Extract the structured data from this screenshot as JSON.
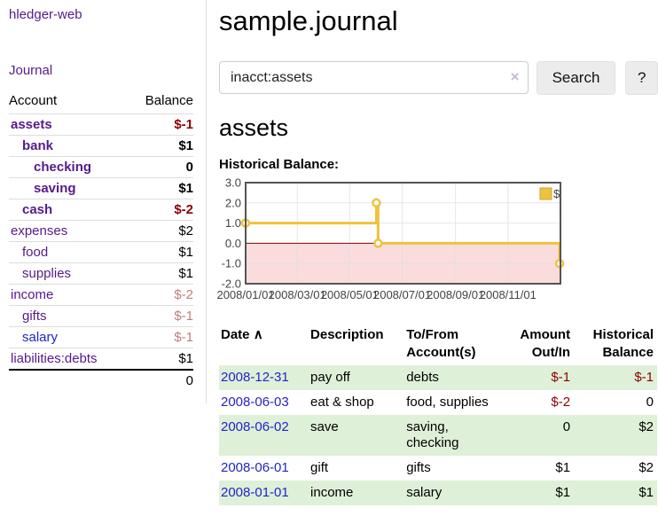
{
  "sidebar": {
    "app_title": "hledger-web",
    "journal_link": "Journal",
    "accounts_header": {
      "account": "Account",
      "balance": "Balance"
    },
    "accounts": [
      {
        "name": "assets",
        "indent": 0,
        "bold": true,
        "link": "purple",
        "balance": "$-1",
        "neg": "dark"
      },
      {
        "name": "bank",
        "indent": 1,
        "bold": true,
        "link": "purple",
        "balance": "$1",
        "neg": null
      },
      {
        "name": "checking",
        "indent": 2,
        "bold": true,
        "link": "purple",
        "balance": "0",
        "neg": null
      },
      {
        "name": "saving",
        "indent": 2,
        "bold": true,
        "link": "purple",
        "balance": "$1",
        "neg": null
      },
      {
        "name": "cash",
        "indent": 1,
        "bold": true,
        "link": "purple",
        "balance": "$-2",
        "neg": "dark"
      },
      {
        "name": "expenses",
        "indent": 0,
        "bold": false,
        "link": "purple",
        "balance": "$2",
        "neg": null
      },
      {
        "name": "food",
        "indent": 1,
        "bold": false,
        "link": "purple",
        "balance": "$1",
        "neg": null
      },
      {
        "name": "supplies",
        "indent": 1,
        "bold": false,
        "link": "purple",
        "balance": "$1",
        "neg": null
      },
      {
        "name": "income",
        "indent": 0,
        "bold": false,
        "link": "purple",
        "balance": "$-2",
        "neg": "light"
      },
      {
        "name": "gifts",
        "indent": 1,
        "bold": false,
        "link": "purple",
        "balance": "$-1",
        "neg": "light"
      },
      {
        "name": "salary",
        "indent": 1,
        "bold": false,
        "link": "blue",
        "balance": "$-1",
        "neg": "light"
      },
      {
        "name": "liabilities:debts",
        "indent": 0,
        "bold": false,
        "link": "purple",
        "balance": "$1",
        "neg": null
      }
    ],
    "total": "0"
  },
  "header": {
    "title": "sample.journal"
  },
  "search": {
    "value": "inacct:assets",
    "clear_icon": "×",
    "search_button": "Search",
    "help_button": "?"
  },
  "account_page": {
    "heading": "assets",
    "chart_label": "Historical Balance:"
  },
  "chart_data": {
    "type": "line",
    "style": "step",
    "title": "Historical Balance",
    "series": [
      {
        "name": "$",
        "points": [
          [
            "2008-01-01",
            1
          ],
          [
            "2008-06-01",
            2
          ],
          [
            "2008-06-03",
            0
          ],
          [
            "2008-12-31",
            -1
          ]
        ]
      }
    ],
    "xlim": [
      "2008-01-01",
      "2009-01-01"
    ],
    "ylim": [
      -2,
      3
    ],
    "yticks": [
      3.0,
      2.0,
      1.0,
      0.0,
      -1.0,
      -2.0
    ],
    "xticks": [
      "2008/01/01",
      "2008/03/01",
      "2008/05/01",
      "2008/07/01",
      "2008/09/01",
      "2008/11/01"
    ],
    "legend": "$",
    "legend_position": "top-right",
    "grid": true,
    "line_color": "#edc240",
    "legend_border_color": "#cfa62a",
    "negative_region_fill": "#fbdcdc",
    "zero_line_color": "#8b0000",
    "plot_border_color": "#545454",
    "grid_color": "#e0e0e0",
    "tick_label_color": "#434343"
  },
  "register": {
    "columns": {
      "date": "Date",
      "sort_arrow": "∧",
      "description": "Description",
      "accounts": "To/From Account(s)",
      "amount": "Amount Out/In",
      "balance": "Historical Balance"
    },
    "rows": [
      {
        "date": "2008-12-31",
        "description": "pay off",
        "accounts": "debts",
        "amount": "$-1",
        "amount_negative": true,
        "balance": "$-1",
        "balance_negative": true
      },
      {
        "date": "2008-06-03",
        "description": "eat & shop",
        "accounts": "food, supplies",
        "amount": "$-2",
        "amount_negative": true,
        "balance": "0",
        "balance_negative": false
      },
      {
        "date": "2008-06-02",
        "description": "save",
        "accounts": "saving, checking",
        "amount": "0",
        "amount_negative": false,
        "balance": "$2",
        "balance_negative": false
      },
      {
        "date": "2008-06-01",
        "description": "gift",
        "accounts": "gifts",
        "amount": "$1",
        "amount_negative": false,
        "balance": "$2",
        "balance_negative": false
      },
      {
        "date": "2008-01-01",
        "description": "income",
        "accounts": "salary",
        "amount": "$1",
        "amount_negative": false,
        "balance": "$1",
        "balance_negative": false
      }
    ]
  },
  "colors": {
    "link_purple": "#551a8b",
    "link_blue": "#2323cc",
    "negative_dark": "#8b0000",
    "negative_light": "#c17d7d",
    "row_green": "#dff0d8",
    "divider": "#dddddd"
  }
}
